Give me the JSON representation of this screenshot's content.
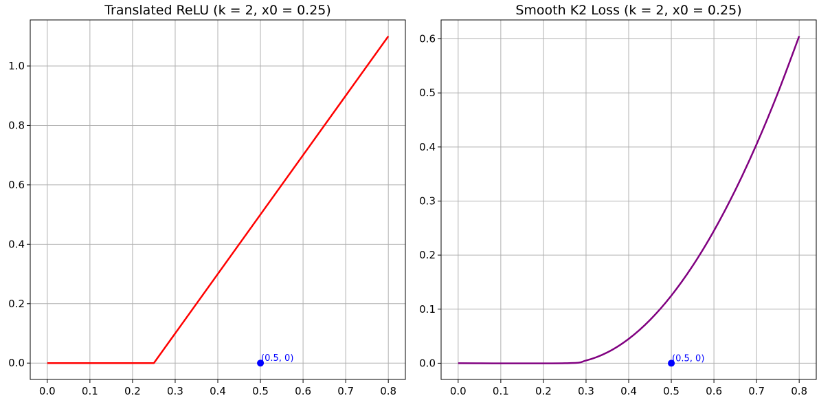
{
  "chart_data": [
    {
      "type": "line",
      "title": "Translated ReLU (k = 2, x0 = 0.25)",
      "xlabel": "",
      "ylabel": "",
      "xlim": [
        -0.04,
        0.84
      ],
      "ylim": [
        -0.055,
        1.155
      ],
      "x_ticks": [
        "0.0",
        "0.1",
        "0.2",
        "0.3",
        "0.4",
        "0.5",
        "0.6",
        "0.7",
        "0.8"
      ],
      "y_ticks": [
        "0.0",
        "0.2",
        "0.4",
        "0.6",
        "0.8",
        "1.0"
      ],
      "grid": true,
      "series": [
        {
          "color": "#ff0000",
          "x": [
            0.0,
            0.25,
            0.8
          ],
          "y": [
            0.0,
            0.0,
            1.1
          ]
        }
      ],
      "points": [
        {
          "x": 0.5,
          "y": 0.0,
          "color": "#0000ff",
          "label": "(0.5, 0)"
        }
      ]
    },
    {
      "type": "line",
      "title": "Smooth K2 Loss (k = 2, x0 = 0.25)",
      "xlabel": "",
      "ylabel": "",
      "xlim": [
        -0.04,
        0.84
      ],
      "ylim": [
        -0.03,
        0.635
      ],
      "x_ticks": [
        "0.0",
        "0.1",
        "0.2",
        "0.3",
        "0.4",
        "0.5",
        "0.6",
        "0.7",
        "0.8"
      ],
      "y_ticks": [
        "0.0",
        "0.1",
        "0.2",
        "0.3",
        "0.4",
        "0.5",
        "0.6"
      ],
      "grid": true,
      "series": [
        {
          "color": "#800080",
          "x": [
            0.0,
            0.25,
            0.3,
            0.35,
            0.4,
            0.45,
            0.5,
            0.55,
            0.6,
            0.65,
            0.7,
            0.75,
            0.8
          ],
          "y": [
            0.0,
            0.0,
            0.005,
            0.02,
            0.045,
            0.08,
            0.125,
            0.18,
            0.245,
            0.32,
            0.405,
            0.5,
            0.605
          ]
        }
      ],
      "points": [
        {
          "x": 0.5,
          "y": 0.0,
          "color": "#0000ff",
          "label": "(0.5, 0)"
        }
      ]
    }
  ]
}
